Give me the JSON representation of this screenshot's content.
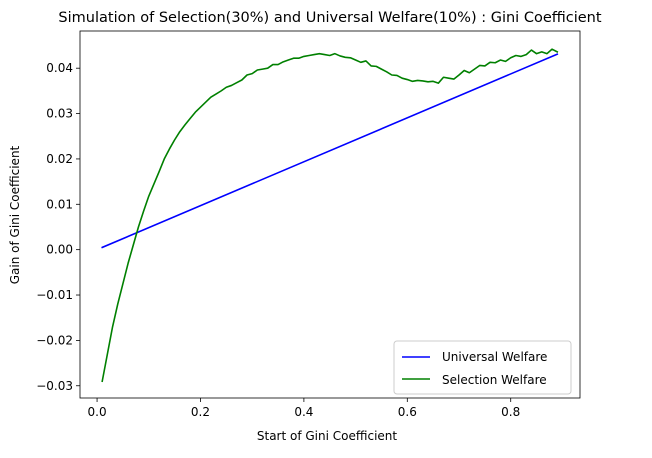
{
  "chart_data": {
    "type": "line",
    "title": "Simulation of Selection(30%) and Universal Welfare(10%) : Gini Coefficient",
    "xlabel": "Start of Gini Coefficient",
    "ylabel": "Gain of Gini Coefficient",
    "xlim": [
      -0.033,
      0.934
    ],
    "ylim": [
      -0.0327,
      0.0482
    ],
    "xticks": [
      0.0,
      0.2,
      0.4,
      0.6,
      0.8
    ],
    "xtick_labels": [
      "0.0",
      "0.2",
      "0.4",
      "0.6",
      "0.8"
    ],
    "yticks": [
      -0.03,
      -0.02,
      -0.01,
      0.0,
      0.01,
      0.02,
      0.03,
      0.04
    ],
    "ytick_labels": [
      "−0.03",
      "−0.02",
      "−0.01",
      "0.00",
      "0.01",
      "0.02",
      "0.03",
      "0.04"
    ],
    "grid": false,
    "legend_position": "lower-right",
    "series": [
      {
        "name": "Universal Welfare",
        "color": "#0000ff",
        "x": [
          0.01,
          0.89
        ],
        "y": [
          0.0005,
          0.0431
        ]
      },
      {
        "name": "Selection Welfare",
        "color": "#008000",
        "x": [
          0.01,
          0.02,
          0.03,
          0.04,
          0.05,
          0.06,
          0.07,
          0.08,
          0.09,
          0.1,
          0.11,
          0.12,
          0.13,
          0.14,
          0.15,
          0.16,
          0.17,
          0.18,
          0.19,
          0.2,
          0.21,
          0.22,
          0.23,
          0.24,
          0.25,
          0.26,
          0.27,
          0.28,
          0.29,
          0.3,
          0.31,
          0.32,
          0.33,
          0.34,
          0.35,
          0.36,
          0.37,
          0.38,
          0.39,
          0.4,
          0.41,
          0.42,
          0.43,
          0.44,
          0.45,
          0.46,
          0.47,
          0.48,
          0.49,
          0.5,
          0.51,
          0.52,
          0.53,
          0.54,
          0.55,
          0.56,
          0.57,
          0.58,
          0.59,
          0.6,
          0.61,
          0.62,
          0.63,
          0.64,
          0.65,
          0.66,
          0.67,
          0.68,
          0.69,
          0.7,
          0.71,
          0.72,
          0.73,
          0.74,
          0.75,
          0.76,
          0.77,
          0.78,
          0.79,
          0.8,
          0.81,
          0.82,
          0.83,
          0.84,
          0.85,
          0.86,
          0.87,
          0.88,
          0.89
        ],
        "y": [
          -0.029,
          -0.023,
          -0.017,
          -0.012,
          -0.0075,
          -0.003,
          0.001,
          0.005,
          0.0085,
          0.0118,
          0.0145,
          0.0172,
          0.02,
          0.0222,
          0.0242,
          0.026,
          0.0275,
          0.0289,
          0.0303,
          0.0314,
          0.0325,
          0.0336,
          0.0343,
          0.035,
          0.0358,
          0.0362,
          0.0368,
          0.0374,
          0.0385,
          0.0388,
          0.0396,
          0.0398,
          0.04,
          0.0408,
          0.0408,
          0.0414,
          0.0418,
          0.0422,
          0.0422,
          0.0426,
          0.0428,
          0.043,
          0.0432,
          0.043,
          0.0428,
          0.0432,
          0.0427,
          0.0424,
          0.0423,
          0.0418,
          0.0413,
          0.0416,
          0.0405,
          0.0404,
          0.0398,
          0.0392,
          0.0385,
          0.0384,
          0.0378,
          0.0375,
          0.0371,
          0.0373,
          0.0372,
          0.037,
          0.0371,
          0.0367,
          0.038,
          0.0378,
          0.0376,
          0.0385,
          0.0395,
          0.039,
          0.0398,
          0.0406,
          0.0405,
          0.0413,
          0.0412,
          0.0418,
          0.0415,
          0.0423,
          0.0428,
          0.0426,
          0.043,
          0.044,
          0.0432,
          0.0436,
          0.0432,
          0.0442,
          0.0436
        ]
      }
    ]
  }
}
